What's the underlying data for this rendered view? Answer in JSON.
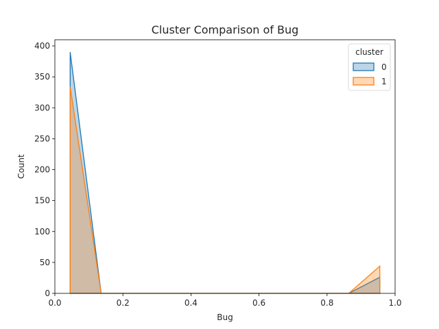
{
  "chart_data": {
    "type": "area",
    "title": "Cluster Comparison of Bug",
    "xlabel": "Bug",
    "ylabel": "Count",
    "xlim": [
      0,
      1
    ],
    "ylim": [
      0,
      410
    ],
    "xticks": [
      "0.0",
      "0.2",
      "0.4",
      "0.6",
      "0.8",
      "1.0"
    ],
    "yticks": [
      "0",
      "50",
      "100",
      "150",
      "200",
      "250",
      "300",
      "350",
      "400"
    ],
    "grid": false,
    "legend": {
      "title": "cluster",
      "placement": "top-right"
    },
    "series": [
      {
        "name": "0",
        "color": "#1f77b4",
        "points": [
          [
            0.045,
            0
          ],
          [
            0.045,
            390
          ],
          [
            0.136,
            0
          ],
          [
            0.864,
            0
          ],
          [
            0.955,
            26
          ],
          [
            0.955,
            0
          ]
        ]
      },
      {
        "name": "1",
        "color": "#ff7f0e",
        "points": [
          [
            0.045,
            0
          ],
          [
            0.045,
            334
          ],
          [
            0.136,
            0
          ],
          [
            0.864,
            0
          ],
          [
            0.955,
            44
          ],
          [
            0.955,
            0
          ]
        ]
      }
    ]
  }
}
